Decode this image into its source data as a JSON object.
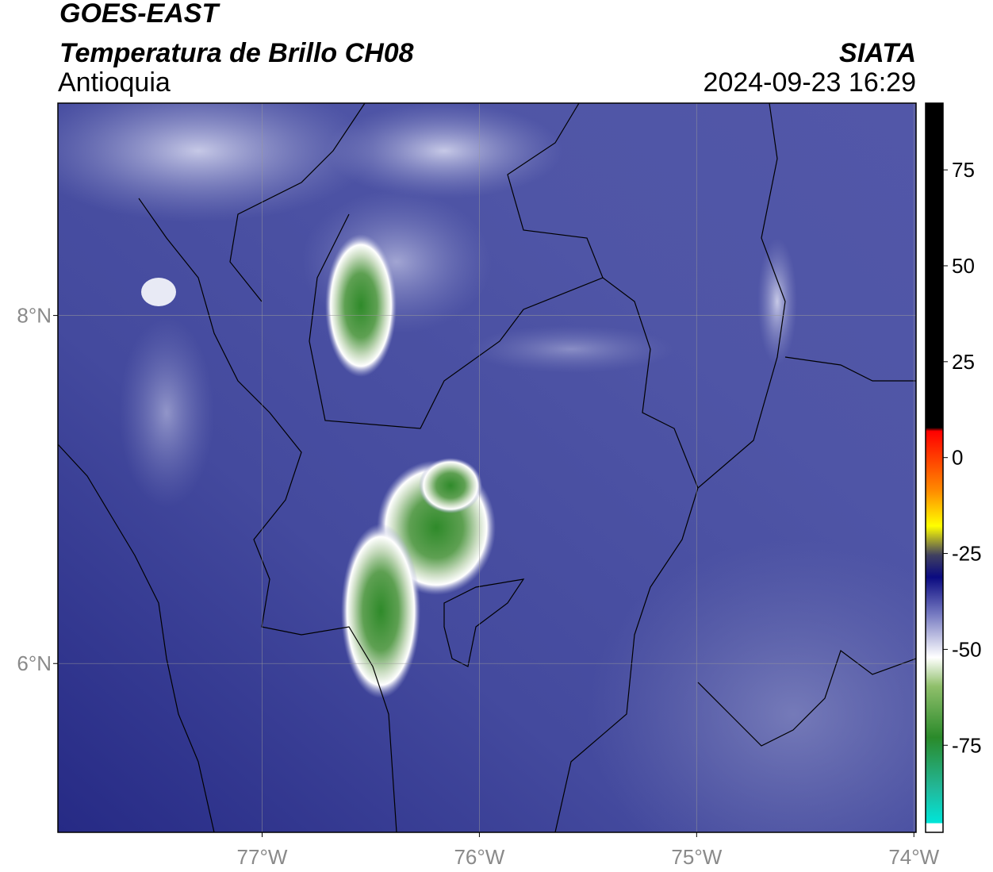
{
  "map": {
    "title": "GOES-EAST",
    "subtitle": "Temperatura de Brillo CH08",
    "region": "Antioquia",
    "source": "SIATA",
    "timestamp": "2024-09-23 16:29",
    "xlim": [
      -77.94,
      -73.99
    ],
    "ylim": [
      5.03,
      9.22
    ],
    "xticks": [
      {
        "value": -77,
        "label": "77°W"
      },
      {
        "value": -76,
        "label": "76°W"
      },
      {
        "value": -75,
        "label": "75°W"
      },
      {
        "value": -74,
        "label": "74°W"
      }
    ],
    "yticks": [
      {
        "value": 8,
        "label": "8°N"
      },
      {
        "value": 6,
        "label": "6°N"
      }
    ],
    "colorbar": {
      "lim": [
        -97.7,
        92.4
      ],
      "ticks": [
        75,
        50,
        25,
        0,
        -25,
        -50,
        -75
      ]
    }
  }
}
